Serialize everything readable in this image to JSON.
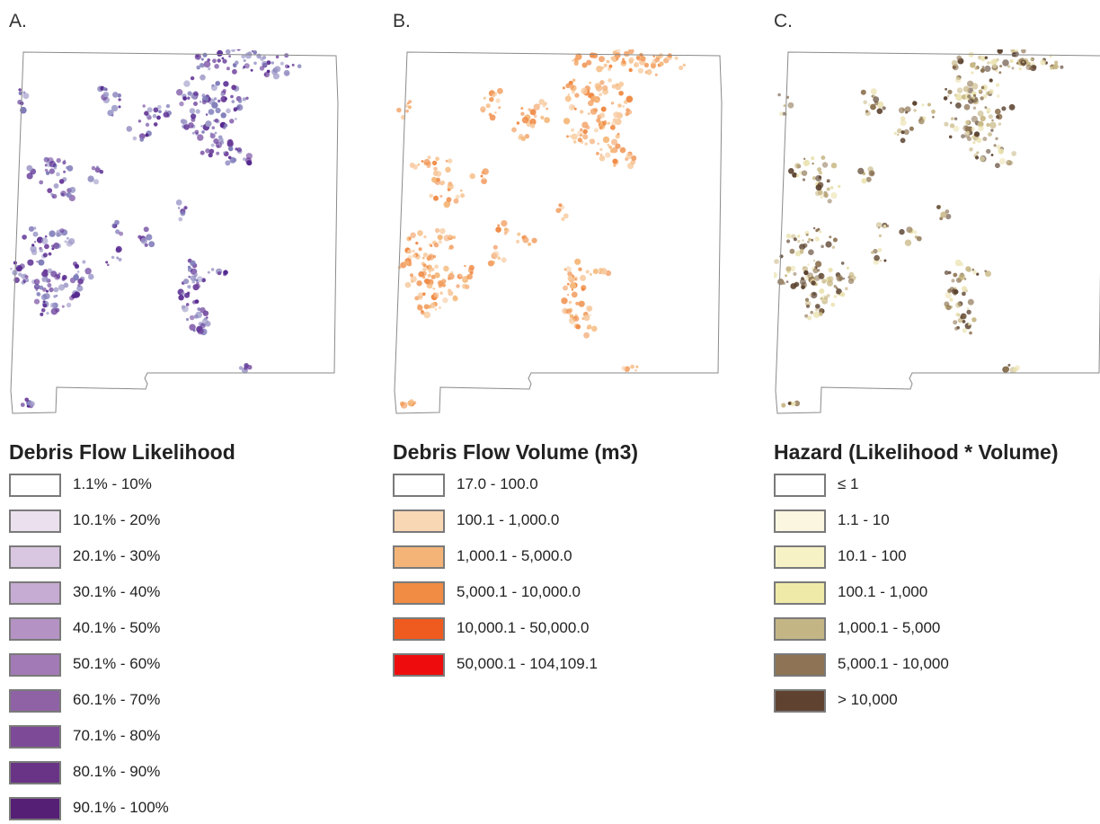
{
  "panels": [
    {
      "letter": "A.",
      "legend_title": "Debris Flow Likelihood",
      "map_palette": [
        "#6a3d9a",
        "#54278f",
        "#807dba",
        "#9e9ac8"
      ],
      "legend": [
        {
          "label": "1.1% - 10%",
          "color": "#ffffff"
        },
        {
          "label": "10.1% - 20%",
          "color": "#ebe0ee"
        },
        {
          "label": "20.1% - 30%",
          "color": "#d9c6e0"
        },
        {
          "label": "30.1% - 40%",
          "color": "#c6acd2"
        },
        {
          "label": "40.1% - 50%",
          "color": "#b493c4"
        },
        {
          "label": "50.1% - 60%",
          "color": "#a27ab6"
        },
        {
          "label": "60.1% - 70%",
          "color": "#8f62a6"
        },
        {
          "label": "70.1% - 80%",
          "color": "#7c4a96"
        },
        {
          "label": "80.1% - 90%",
          "color": "#693486"
        },
        {
          "label": "90.1% - 100%",
          "color": "#561f76"
        }
      ]
    },
    {
      "letter": "B.",
      "legend_title": "Debris Flow Volume (m3)",
      "map_palette": [
        "#f5b97c",
        "#f08a45",
        "#f2a063",
        "#f7caa0"
      ],
      "legend": [
        {
          "label": "17.0 - 100.0",
          "color": "#ffffff"
        },
        {
          "label": "100.1 - 1,000.0",
          "color": "#f8d8b4"
        },
        {
          "label": "1,000.1 - 5,000.0",
          "color": "#f4b478"
        },
        {
          "label": "5,000.1 - 10,000.0",
          "color": "#f18c44"
        },
        {
          "label": "10,000.1 - 50,000.0",
          "color": "#ef5a1e"
        },
        {
          "label": "50,000.1 - 104,109.1",
          "color": "#ee0c0c"
        }
      ]
    },
    {
      "letter": "C.",
      "legend_title": "Hazard (Likelihood * Volume)",
      "map_palette": [
        "#eae2b0",
        "#c8b785",
        "#8e7554",
        "#5c4330"
      ],
      "legend": [
        {
          "label": "≤ 1",
          "color": "#ffffff"
        },
        {
          "label": "1.1 - 10",
          "color": "#fbf6e0"
        },
        {
          "label": "10.1 - 100",
          "color": "#f7f2c6"
        },
        {
          "label": "100.1 - 1,000",
          "color": "#f0eaa8"
        },
        {
          "label": "1,000.1 - 5,000",
          "color": "#c4b585"
        },
        {
          "label": "5,000.1 - 10,000",
          "color": "#8e7454"
        },
        {
          "label": "> 10,000",
          "color": "#5f4330"
        }
      ]
    }
  ]
}
